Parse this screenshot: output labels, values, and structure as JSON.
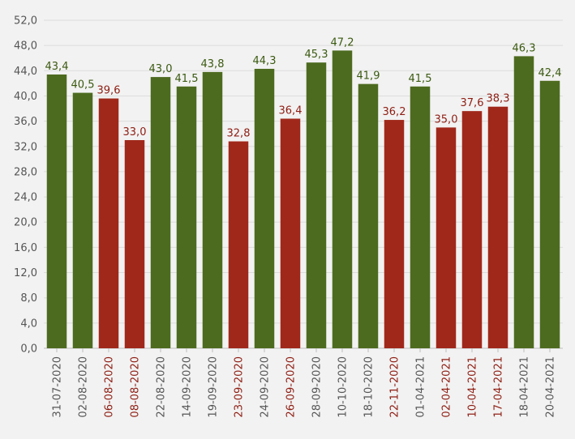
{
  "chart_data": {
    "type": "bar",
    "title": "",
    "xlabel": "",
    "ylabel": "",
    "ylim": [
      0,
      52
    ],
    "yticks": [
      "0,0",
      "4,0",
      "8,0",
      "12,0",
      "16,0",
      "20,0",
      "24,0",
      "28,0",
      "32,0",
      "36,0",
      "40,0",
      "44,0",
      "48,0",
      "52,0"
    ],
    "grid": true,
    "categories": [
      "31-07-2020",
      "02-08-2020",
      "06-08-2020",
      "08-08-2020",
      "22-08-2020",
      "14-09-2020",
      "19-09-2020",
      "23-09-2020",
      "24-09-2020",
      "26-09-2020",
      "28-09-2020",
      "10-10-2020",
      "18-10-2020",
      "22-11-2020",
      "01-04-2021",
      "02-04-2021",
      "10-04-2021",
      "17-04-2021",
      "18-04-2021",
      "20-04-2021"
    ],
    "values": [
      43.4,
      40.5,
      39.6,
      33.0,
      43.0,
      41.5,
      43.8,
      32.8,
      44.3,
      36.4,
      45.3,
      47.2,
      41.9,
      36.2,
      41.5,
      35.0,
      37.6,
      38.3,
      46.3,
      42.4
    ],
    "value_labels": [
      "43,4",
      "40,5",
      "39,6",
      "33,0",
      "43,0",
      "41,5",
      "43,8",
      "32,8",
      "44,3",
      "36,4",
      "45,3",
      "47,2",
      "41,9",
      "36,2",
      "41,5",
      "35,0",
      "37,6",
      "38,3",
      "46,3",
      "42,4"
    ],
    "status": [
      "up",
      "up",
      "down",
      "down",
      "up",
      "up",
      "up",
      "down",
      "up",
      "down",
      "up",
      "up",
      "up",
      "down",
      "up",
      "down",
      "down",
      "down",
      "up",
      "up"
    ],
    "colors": {
      "up_bar": "#4d6b1f",
      "down_bar": "#a0281b",
      "up_text": "#3b5a10",
      "down_text": "#8e1d12"
    }
  }
}
